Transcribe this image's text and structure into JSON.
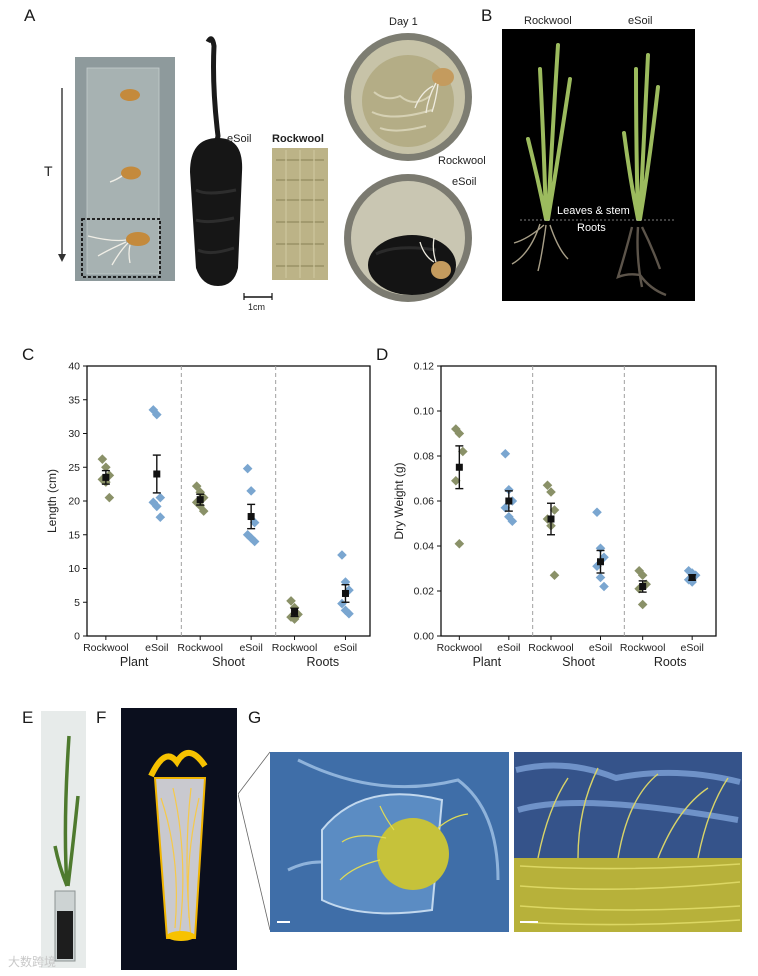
{
  "panels": {
    "a": "A",
    "b": "B",
    "c": "C",
    "d": "D",
    "e": "E",
    "f": "F",
    "g": "G"
  },
  "panel_a": {
    "time_label": "T",
    "esoil_label": "eSoil",
    "rockwool_label": "Rockwool",
    "scale_label": "1cm",
    "day_label": "Day 1",
    "rockwool_label2": "Rockwool",
    "esoil_label2": "eSoil"
  },
  "panel_b": {
    "rockwool_label": "Rockwool",
    "esoil_label": "eSoil",
    "leaves_label": "Leaves & stem",
    "roots_label": "Roots"
  },
  "watermark": "大数跨境",
  "colors": {
    "rockwool": "#8a9168",
    "esoil": "#7aa6d0",
    "mean": "#111111",
    "divider": "#a0a0a0"
  },
  "chart_data": [
    {
      "type": "scatter",
      "ylabel": "Length (cm)",
      "ylim": [
        0,
        40
      ],
      "yticks": [
        0,
        5,
        10,
        15,
        20,
        25,
        30,
        35,
        40
      ],
      "groups": [
        "Plant",
        "Shoot",
        "Roots"
      ],
      "categories": [
        "Rockwool",
        "eSoil"
      ],
      "series": [
        {
          "group": "Plant",
          "category": "Rockwool",
          "points": [
            26.2,
            25.0,
            23.8,
            23.2,
            22.8,
            20.5
          ],
          "mean": 23.5,
          "err": 1.0
        },
        {
          "group": "Plant",
          "category": "eSoil",
          "points": [
            33.5,
            32.8,
            20.5,
            19.8,
            19.2,
            17.6
          ],
          "mean": 24.0,
          "err": 2.8
        },
        {
          "group": "Shoot",
          "category": "Rockwool",
          "points": [
            22.2,
            21.3,
            20.5,
            19.8,
            19.3,
            18.5
          ],
          "mean": 20.2,
          "err": 0.8
        },
        {
          "group": "Shoot",
          "category": "eSoil",
          "points": [
            24.8,
            21.5,
            16.8,
            15.0,
            14.5,
            14.0
          ],
          "mean": 17.7,
          "err": 1.8
        },
        {
          "group": "Roots",
          "category": "Rockwool",
          "points": [
            5.2,
            4.2,
            3.2,
            2.8,
            2.5
          ],
          "mean": 3.5,
          "err": 0.6
        },
        {
          "group": "Roots",
          "category": "eSoil",
          "points": [
            12.0,
            8.0,
            6.8,
            4.8,
            3.8,
            3.3
          ],
          "mean": 6.3,
          "err": 1.3
        }
      ]
    },
    {
      "type": "scatter",
      "ylabel": "Dry Weight (g)",
      "ylim": [
        0,
        0.12
      ],
      "yticks": [
        "0.00",
        "0.02",
        "0.04",
        "0.06",
        "0.08",
        "0.10",
        "0.12"
      ],
      "groups": [
        "Plant",
        "Shoot",
        "Roots"
      ],
      "categories": [
        "Rockwool",
        "eSoil"
      ],
      "series": [
        {
          "group": "Plant",
          "category": "Rockwool",
          "points": [
            0.092,
            0.09,
            0.082,
            0.069,
            0.041
          ],
          "mean": 0.075,
          "err": 0.0095
        },
        {
          "group": "Plant",
          "category": "eSoil",
          "points": [
            0.081,
            0.065,
            0.06,
            0.057,
            0.053,
            0.051
          ],
          "mean": 0.06,
          "err": 0.0045
        },
        {
          "group": "Shoot",
          "category": "Rockwool",
          "points": [
            0.067,
            0.064,
            0.056,
            0.052,
            0.049,
            0.027
          ],
          "mean": 0.052,
          "err": 0.007
        },
        {
          "group": "Shoot",
          "category": "eSoil",
          "points": [
            0.055,
            0.039,
            0.035,
            0.031,
            0.026,
            0.022
          ],
          "mean": 0.033,
          "err": 0.005
        },
        {
          "group": "Roots",
          "category": "Rockwool",
          "points": [
            0.029,
            0.027,
            0.023,
            0.021,
            0.014
          ],
          "mean": 0.022,
          "err": 0.0025
        },
        {
          "group": "Roots",
          "category": "eSoil",
          "points": [
            0.029,
            0.028,
            0.027,
            0.025,
            0.024
          ],
          "mean": 0.026,
          "err": 0.0012
        }
      ]
    }
  ]
}
